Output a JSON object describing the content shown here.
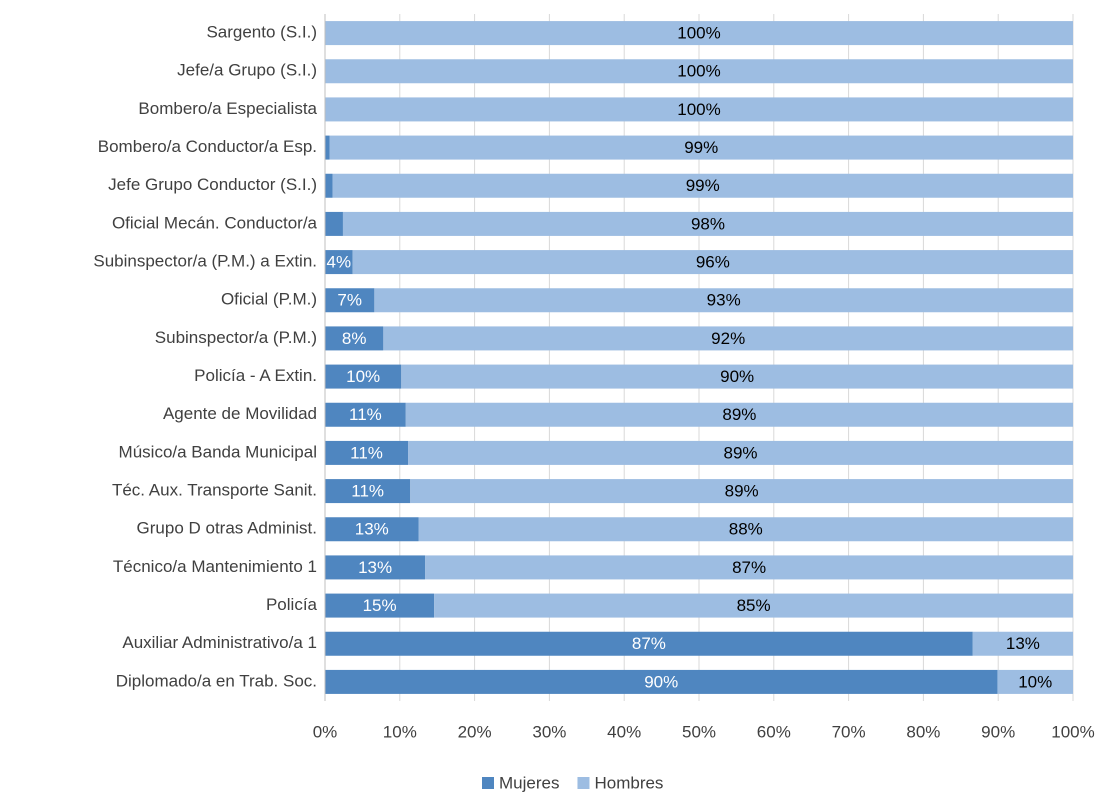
{
  "chart_data": {
    "type": "stacked_bar_horizontal",
    "categories": [
      "Sargento (S.I.)",
      "Jefe/a Grupo (S.I.)",
      "Bombero/a Especialista",
      "Bombero/a Conductor/a Esp.",
      "Jefe Grupo Conductor (S.I.)",
      "Oficial Mecán. Conductor/a",
      "Subinspector/a (P.M.) a Extin.",
      "Oficial (P.M.)",
      "Subinspector/a (P.M.)",
      "Policía - A Extin.",
      "Agente de Movilidad",
      "Músico/a Banda Municipal",
      "Téc. Aux. Transporte Sanit.",
      "Grupo D otras Administ.",
      "Técnico/a Mantenimiento 1",
      "Policía",
      "Auxiliar Administrativo/a 1",
      "Diplomado/a en Trab. Soc."
    ],
    "series": [
      {
        "name": "Mujeres",
        "color": "#4f86c0",
        "values": [
          0,
          0,
          0,
          0.6,
          1,
          2.4,
          3.7,
          6.6,
          7.8,
          10.2,
          10.8,
          11.1,
          11.4,
          12.5,
          13.4,
          14.6,
          86.6,
          89.9
        ],
        "value_labels": [
          null,
          null,
          null,
          null,
          null,
          null,
          "4%",
          "7%",
          "8%",
          "10%",
          "11%",
          "11%",
          "11%",
          "13%",
          "13%",
          "15%",
          "87%",
          "90%"
        ]
      },
      {
        "name": "Hombres",
        "color": "#9dbde2",
        "values": [
          100,
          100,
          100,
          99.4,
          99,
          97.6,
          96.3,
          93.4,
          92.2,
          89.8,
          89.2,
          88.9,
          88.6,
          87.5,
          86.6,
          85.4,
          13.4,
          10.1
        ],
        "value_labels": [
          "100%",
          "100%",
          "100%",
          "99%",
          "99%",
          "98%",
          "96%",
          "93%",
          "92%",
          "90%",
          "89%",
          "89%",
          "89%",
          "88%",
          "87%",
          "85%",
          "13%",
          "10%"
        ]
      }
    ],
    "xlim": [
      0,
      100
    ],
    "xticks": [
      {
        "value": 0,
        "label": "0%"
      },
      {
        "value": 10,
        "label": "10%"
      },
      {
        "value": 20,
        "label": "20%"
      },
      {
        "value": 30,
        "label": "30%"
      },
      {
        "value": 40,
        "label": "40%"
      },
      {
        "value": 50,
        "label": "50%"
      },
      {
        "value": 60,
        "label": "60%"
      },
      {
        "value": 70,
        "label": "70%"
      },
      {
        "value": 80,
        "label": "80%"
      },
      {
        "value": 90,
        "label": "90%"
      },
      {
        "value": 100,
        "label": "100%"
      }
    ],
    "grid": true,
    "legend": "bottom"
  }
}
